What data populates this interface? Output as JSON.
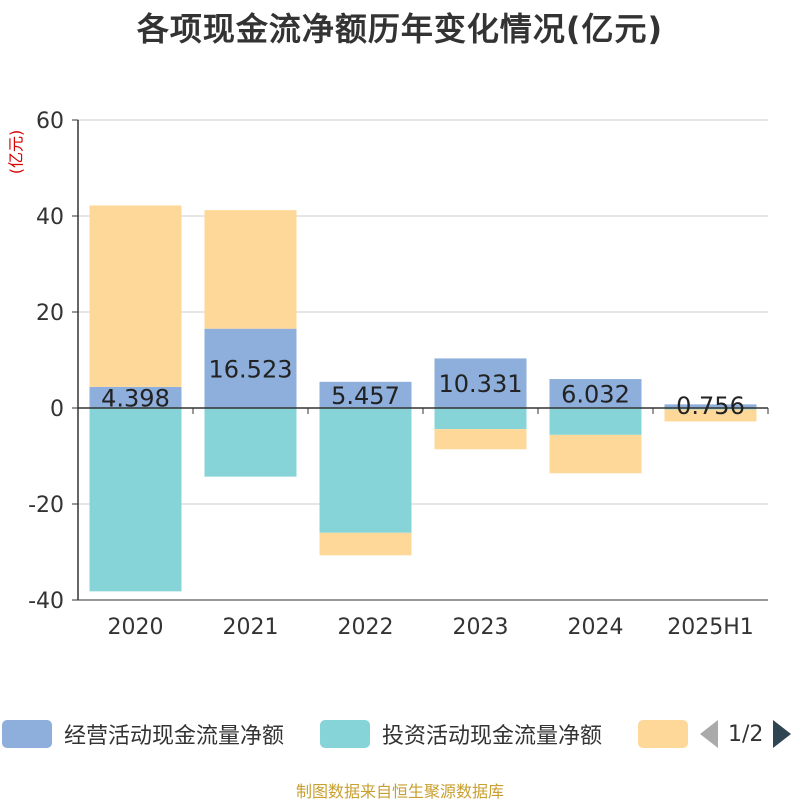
{
  "title": "各项现金流净额历年变化情况(亿元)",
  "unit_label": "(亿元)",
  "footer": "制图数据来自恒生聚源数据库",
  "legend": {
    "items": [
      {
        "label": "经营活动现金流量净额",
        "color": "#8eaedb"
      },
      {
        "label": "投资活动现金流量净额",
        "color": "#87d4d8"
      },
      {
        "label": "",
        "color": "#fed899"
      }
    ],
    "page_text": "1/2"
  },
  "colors": {
    "axis": "#333333",
    "grid": "#cccccc",
    "tick_text": "#333333"
  },
  "chart_data": {
    "type": "bar",
    "stacked": true,
    "categories": [
      "2020",
      "2021",
      "2022",
      "2023",
      "2024",
      "2025H1"
    ],
    "ylim": [
      -40,
      60
    ],
    "yticks": [
      -40,
      -20,
      0,
      20,
      40,
      60
    ],
    "grid": true,
    "legend_position": "bottom",
    "series": [
      {
        "name": "经营活动现金流量净额",
        "color": "#8eaedb",
        "values": [
          4.398,
          16.523,
          5.457,
          10.331,
          6.032,
          0.756
        ],
        "show_labels": true
      },
      {
        "name": "投资活动现金流量净额",
        "color": "#87d4d8",
        "values": [
          -38.2,
          -14.3,
          -26.0,
          -4.4,
          -5.6,
          -0.3
        ],
        "show_labels": false
      },
      {
        "name": "",
        "color": "#fed899",
        "values": [
          37.8,
          24.7,
          -4.7,
          -4.2,
          -8.0,
          -2.5
        ],
        "show_labels": false
      }
    ]
  }
}
